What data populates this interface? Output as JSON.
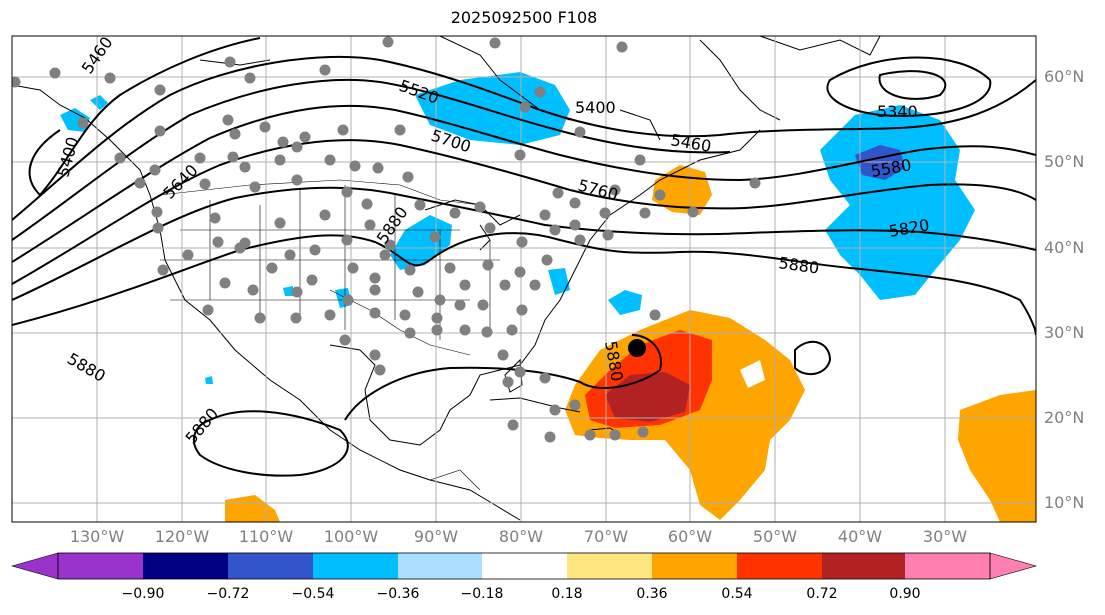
{
  "title": "2025092500 F108",
  "lat_labels": [
    "60°N",
    "50°N",
    "40°N",
    "30°N",
    "20°N",
    "10°N"
  ],
  "lon_labels": [
    "130°W",
    "120°W",
    "110°W",
    "100°W",
    "90°W",
    "80°W",
    "70°W",
    "60°W",
    "50°W",
    "40°W",
    "30°W"
  ],
  "contour_labels": [
    "5460",
    "5400",
    "5640",
    "5520",
    "5700",
    "5400",
    "5460",
    "5760",
    "5880",
    "5340",
    "5580",
    "5820",
    "5880",
    "5880",
    "5880",
    "5880"
  ],
  "colorbar": {
    "tick_labels": [
      "−0.90",
      "−0.72",
      "−0.54",
      "−0.36",
      "−0.18",
      "0.18",
      "0.36",
      "0.54",
      "0.72",
      "0.90"
    ],
    "colors": [
      "#9933cc",
      "#000080",
      "#3355cc",
      "#00bfff",
      "#aadfff",
      "#ffffff",
      "#ffe680",
      "#ffa500",
      "#ff3300",
      "#b22222",
      "#ff80b0"
    ]
  },
  "colors": {
    "coastline": "#000000",
    "grid": "#b0b0b0",
    "station_dot": "#808080",
    "marker": "#000000"
  }
}
